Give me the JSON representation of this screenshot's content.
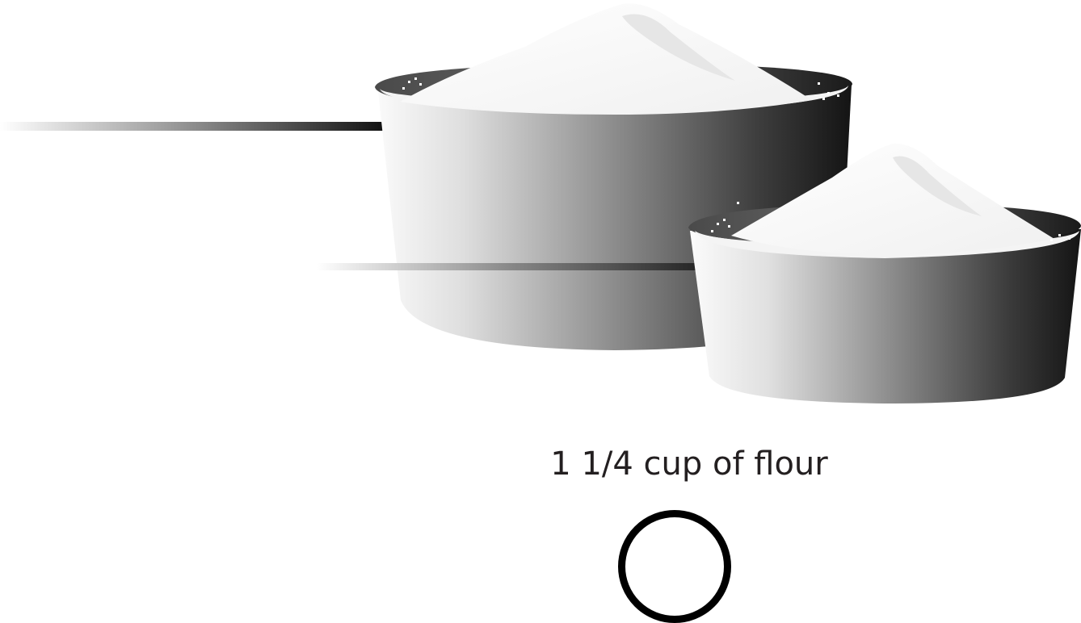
{
  "caption": "1 1/4 cup of flour",
  "icons": {
    "large_cup": "measuring-cup-full-icon",
    "small_cup": "measuring-cup-quarter-icon",
    "answer": "circle-select-icon"
  },
  "colors": {
    "cup_dark": "#161616",
    "cup_light": "#f5f5f5",
    "flour": "#fbfbfb",
    "text": "#231f20",
    "circle_outline": "#000000"
  }
}
